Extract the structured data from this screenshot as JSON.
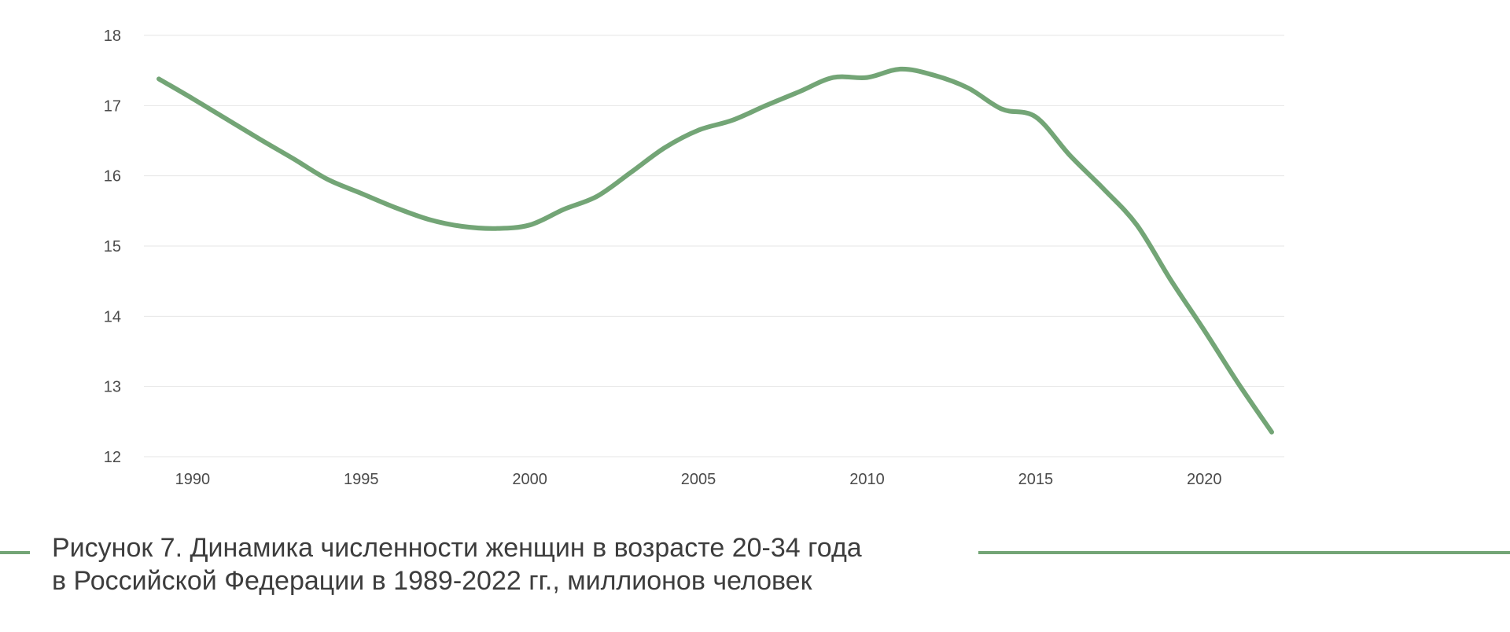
{
  "colors": {
    "line": "#73a576",
    "grid": "#e6e6e6",
    "text": "#3d3d3d",
    "accent": "#73a576"
  },
  "caption": {
    "line1": "Рисунок 7. Динамика численности женщин в возрасте 20-34 года",
    "line2": "в Российской Федерации в 1989-2022 гг., миллионов человек"
  },
  "chart_data": {
    "type": "line",
    "title": "",
    "xlabel": "",
    "ylabel": "",
    "xlim": [
      1989,
      2022
    ],
    "ylim": [
      12,
      18
    ],
    "grid": true,
    "xticks": [
      1990,
      1995,
      2000,
      2005,
      2010,
      2015,
      2020
    ],
    "yticks": [
      12,
      13,
      14,
      15,
      16,
      17,
      18
    ],
    "x": [
      1989,
      1990,
      1991,
      1992,
      1993,
      1994,
      1995,
      1996,
      1997,
      1998,
      1999,
      2000,
      2001,
      2002,
      2003,
      2004,
      2005,
      2006,
      2007,
      2008,
      2009,
      2010,
      2011,
      2012,
      2013,
      2014,
      2015,
      2016,
      2017,
      2018,
      2019,
      2020,
      2021,
      2022
    ],
    "series": [
      {
        "values": [
          17.38,
          17.1,
          16.81,
          16.52,
          16.24,
          15.95,
          15.75,
          15.55,
          15.38,
          15.28,
          15.25,
          15.3,
          15.52,
          15.71,
          16.05,
          16.4,
          16.65,
          16.79,
          17.0,
          17.2,
          17.4,
          17.4,
          17.52,
          17.43,
          17.25,
          16.95,
          16.84,
          16.3,
          15.82,
          15.3,
          14.52,
          13.8,
          13.05,
          12.35
        ]
      }
    ]
  }
}
